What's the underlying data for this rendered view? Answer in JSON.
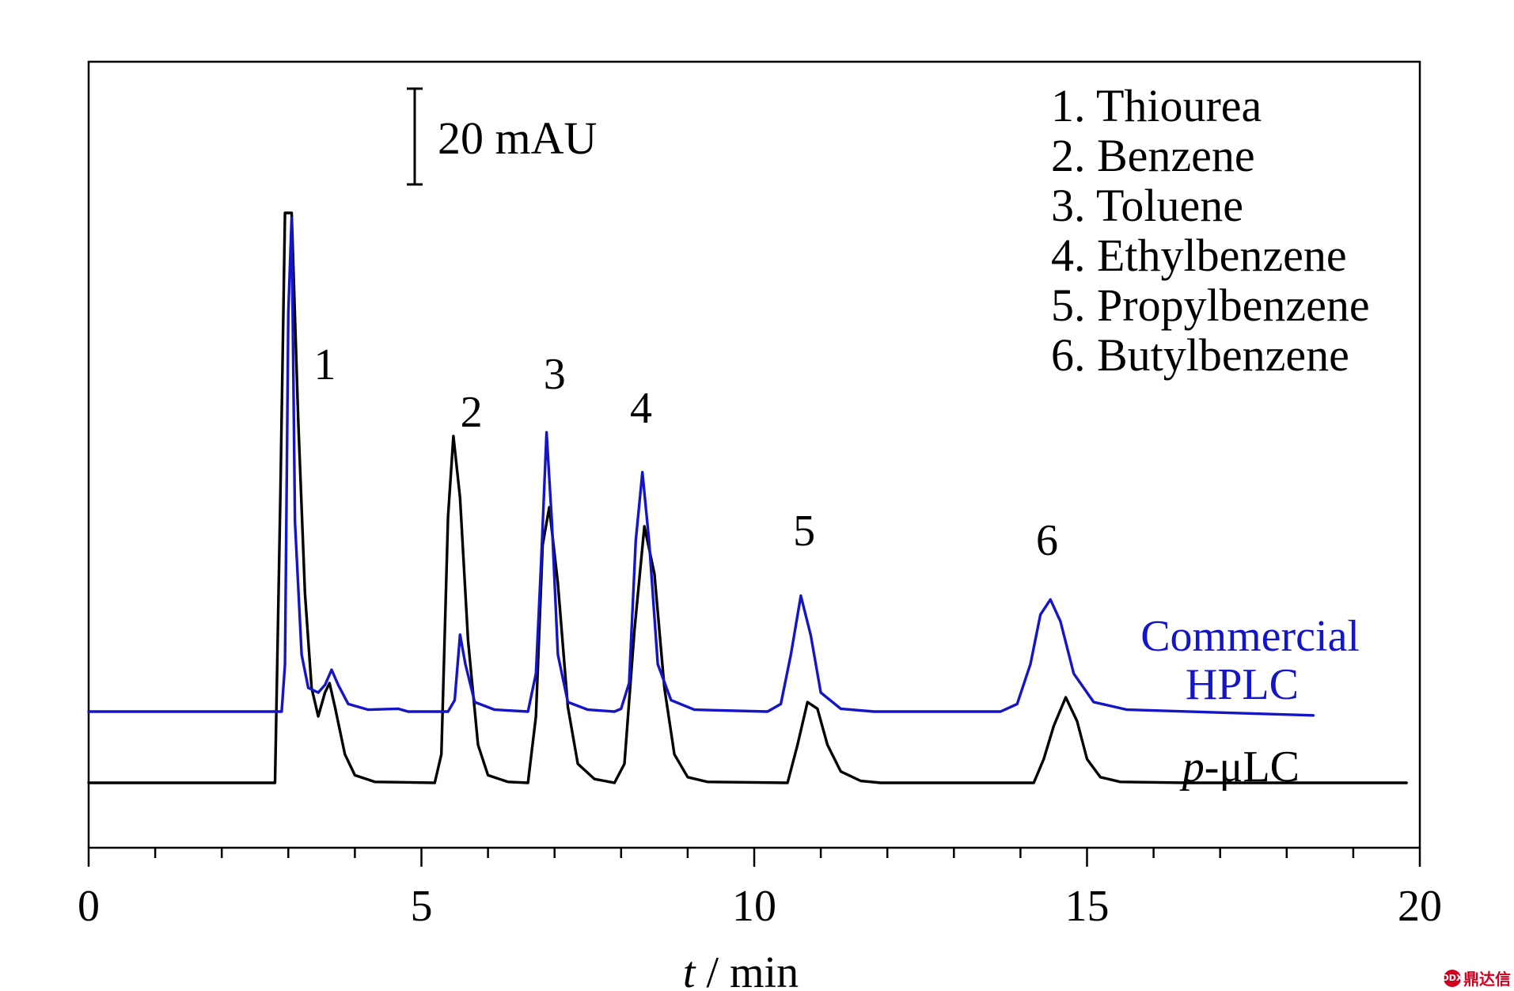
{
  "chart_data": {
    "type": "line",
    "title": "",
    "xlabel_italic": "t",
    "xlabel_rest": " / min",
    "ylabel": "",
    "xlim": [
      0,
      20
    ],
    "x_ticks": [
      0,
      5,
      10,
      15,
      20
    ],
    "minor_tick_step": 1,
    "scale_bar_label": "20 mAU",
    "series": [
      {
        "name": "Commercial HPLC",
        "label_lines": [
          "Commercial",
          "HPLC"
        ],
        "color": "#1515c8",
        "baseline": 0,
        "x_end": 18.4,
        "points": [
          [
            0,
            0
          ],
          [
            2.9,
            0
          ],
          [
            2.95,
            50
          ],
          [
            3.0,
            420
          ],
          [
            3.05,
            520
          ],
          [
            3.1,
            200
          ],
          [
            3.2,
            60
          ],
          [
            3.3,
            25
          ],
          [
            3.45,
            20
          ],
          [
            3.55,
            28
          ],
          [
            3.65,
            44
          ],
          [
            3.75,
            28
          ],
          [
            3.9,
            8
          ],
          [
            4.2,
            2
          ],
          [
            4.65,
            3
          ],
          [
            4.8,
            0
          ],
          [
            5.4,
            0
          ],
          [
            5.5,
            12
          ],
          [
            5.58,
            81
          ],
          [
            5.66,
            50
          ],
          [
            5.8,
            10
          ],
          [
            6.1,
            2
          ],
          [
            6.6,
            0
          ],
          [
            6.72,
            40
          ],
          [
            6.8,
            160
          ],
          [
            6.88,
            294
          ],
          [
            6.96,
            200
          ],
          [
            7.05,
            60
          ],
          [
            7.2,
            10
          ],
          [
            7.5,
            2
          ],
          [
            7.9,
            0
          ],
          [
            8.0,
            3
          ],
          [
            8.12,
            30
          ],
          [
            8.22,
            180
          ],
          [
            8.32,
            252
          ],
          [
            8.42,
            180
          ],
          [
            8.55,
            50
          ],
          [
            8.75,
            12
          ],
          [
            9.1,
            2
          ],
          [
            10.2,
            0
          ],
          [
            10.4,
            8
          ],
          [
            10.55,
            60
          ],
          [
            10.7,
            122
          ],
          [
            10.85,
            80
          ],
          [
            11.0,
            20
          ],
          [
            11.3,
            3
          ],
          [
            11.8,
            0
          ],
          [
            13.7,
            0
          ],
          [
            13.95,
            8
          ],
          [
            14.15,
            50
          ],
          [
            14.3,
            102
          ],
          [
            14.45,
            118
          ],
          [
            14.6,
            95
          ],
          [
            14.8,
            40
          ],
          [
            15.1,
            10
          ],
          [
            15.6,
            2
          ],
          [
            18.4,
            -4
          ]
        ]
      },
      {
        "name": "p-μLC",
        "label_italic": "p",
        "label_rest": "-μLC",
        "color": "#000000",
        "baseline": -75,
        "x_end": 19.8,
        "points": [
          [
            0,
            0
          ],
          [
            2.8,
            0
          ],
          [
            2.88,
            300
          ],
          [
            2.95,
            600
          ],
          [
            3.05,
            600
          ],
          [
            3.15,
            380
          ],
          [
            3.25,
            200
          ],
          [
            3.35,
            100
          ],
          [
            3.45,
            70
          ],
          [
            3.55,
            95
          ],
          [
            3.62,
            105
          ],
          [
            3.7,
            80
          ],
          [
            3.85,
            30
          ],
          [
            4.0,
            8
          ],
          [
            4.3,
            1
          ],
          [
            5.2,
            0
          ],
          [
            5.3,
            30
          ],
          [
            5.4,
            280
          ],
          [
            5.48,
            365
          ],
          [
            5.58,
            300
          ],
          [
            5.7,
            150
          ],
          [
            5.85,
            40
          ],
          [
            6.0,
            8
          ],
          [
            6.3,
            1
          ],
          [
            6.6,
            0
          ],
          [
            6.72,
            70
          ],
          [
            6.82,
            250
          ],
          [
            6.92,
            290
          ],
          [
            7.05,
            210
          ],
          [
            7.2,
            80
          ],
          [
            7.35,
            20
          ],
          [
            7.6,
            4
          ],
          [
            7.9,
            0
          ],
          [
            8.05,
            20
          ],
          [
            8.2,
            160
          ],
          [
            8.35,
            270
          ],
          [
            8.5,
            220
          ],
          [
            8.65,
            100
          ],
          [
            8.8,
            30
          ],
          [
            9.0,
            6
          ],
          [
            9.3,
            1
          ],
          [
            10.5,
            0
          ],
          [
            10.65,
            40
          ],
          [
            10.8,
            85
          ],
          [
            10.95,
            78
          ],
          [
            11.1,
            40
          ],
          [
            11.3,
            12
          ],
          [
            11.6,
            2
          ],
          [
            11.9,
            0
          ],
          [
            14.2,
            0
          ],
          [
            14.35,
            25
          ],
          [
            14.5,
            60
          ],
          [
            14.68,
            90
          ],
          [
            14.85,
            65
          ],
          [
            15.0,
            25
          ],
          [
            15.2,
            6
          ],
          [
            15.5,
            1
          ],
          [
            16.5,
            0
          ],
          [
            19.8,
            0
          ]
        ]
      }
    ],
    "peak_labels": [
      {
        "text": "1",
        "x": 3.55,
        "y": 350
      },
      {
        "text": "2",
        "x": 5.75,
        "y": 300
      },
      {
        "text": "3",
        "x": 7.0,
        "y": 340
      },
      {
        "text": "4",
        "x": 8.3,
        "y": 304
      },
      {
        "text": "5",
        "x": 10.75,
        "y": 175
      },
      {
        "text": "6",
        "x": 14.4,
        "y": 165
      }
    ],
    "legend_items": [
      "1. Thiourea",
      "2. Benzene",
      "3. Toluene",
      "4. Ethylbenzene",
      "5. Propylbenzene",
      "6. Butylbenzene"
    ]
  },
  "watermark": {
    "badge": "DDX",
    "text": "鼎达信"
  }
}
